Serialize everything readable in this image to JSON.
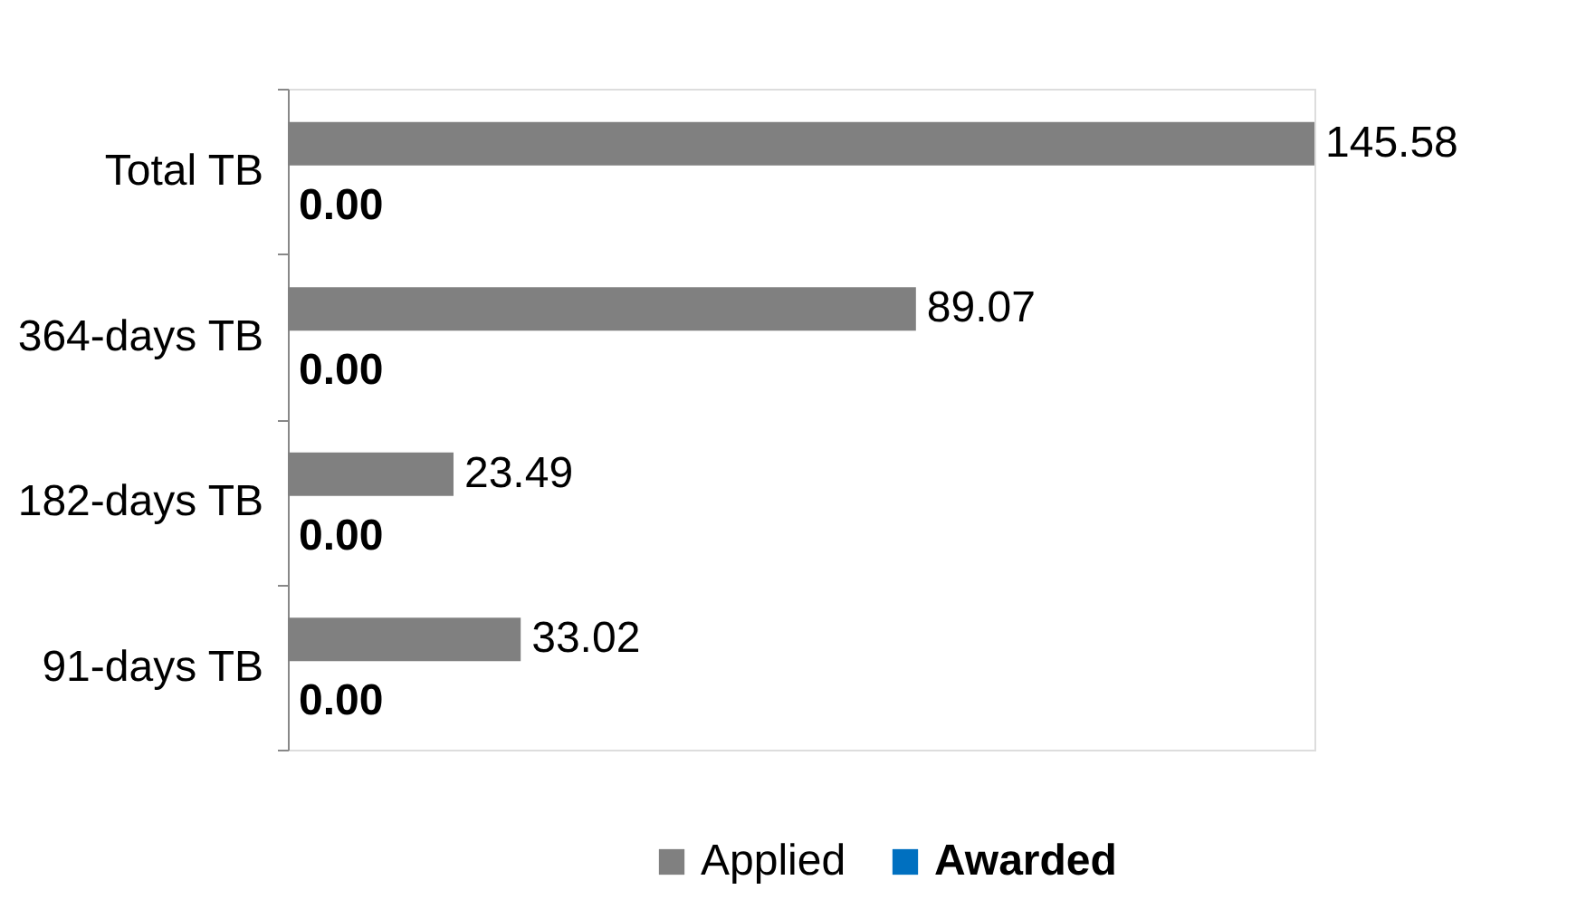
{
  "chart_data": {
    "type": "bar",
    "orientation": "horizontal",
    "categories": [
      "Total TB",
      "364-days TB",
      "182-days TB",
      "91-days TB"
    ],
    "series": [
      {
        "name": "Applied",
        "color": "#808080",
        "values": [
          145.58,
          89.07,
          23.49,
          33.02
        ],
        "value_labels": [
          "145.58",
          "89.07",
          "23.49",
          "33.02"
        ]
      },
      {
        "name": "Awarded",
        "color": "#0070c0",
        "values": [
          0.0,
          0.0,
          0.0,
          0.0
        ],
        "value_labels": [
          "0.00",
          "0.00",
          "0.00",
          "0.00"
        ]
      }
    ],
    "legend": "bottom",
    "grid": false
  }
}
